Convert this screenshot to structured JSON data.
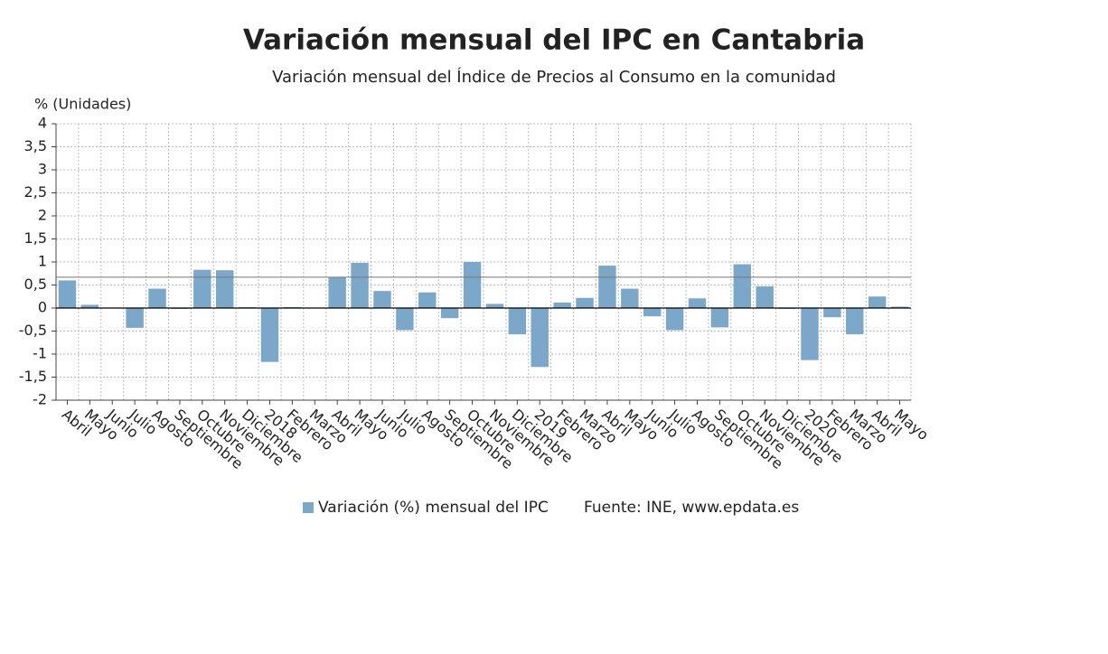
{
  "chart_data": {
    "type": "bar",
    "title": "Variación mensual del IPC en Cantabria",
    "subtitle": "Variación mensual del Índice de Precios al Consumo en la comunidad",
    "y_axis_label": "% (Unidades)",
    "source": "Fuente: INE, www.epdata.es",
    "categories": [
      "Abril",
      "Mayo",
      "Junio",
      "Julio",
      "Agosto",
      "Septiembre",
      "Octubre",
      "Noviembre",
      "Diciembre",
      "2018",
      "Febrero",
      "Marzo",
      "Abril",
      "Mayo",
      "Junio",
      "Julio",
      "Agosto",
      "Septiembre",
      "Octubre",
      "Noviembre",
      "Diciembre",
      "2019",
      "Febrero",
      "Marzo",
      "Abril",
      "Mayo",
      "Junio",
      "Julio",
      "Agosto",
      "Septiembre",
      "Octubre",
      "Noviembre",
      "Diciembre",
      "2020",
      "Febrero",
      "Marzo",
      "Abril",
      "Mayo"
    ],
    "series": [
      {
        "name": "Variación (%) mensual del IPC",
        "color": "#7ba7c9",
        "values": [
          0.6,
          0.07,
          0,
          -0.43,
          0.42,
          -0.02,
          0.83,
          0.82,
          0.02,
          -1.17,
          0.02,
          0,
          0.67,
          0.98,
          0.37,
          -0.48,
          0.34,
          -0.22,
          1.0,
          0.09,
          -0.57,
          -1.28,
          0.12,
          0.22,
          0.92,
          0.42,
          -0.18,
          -0.48,
          0.21,
          -0.42,
          0.95,
          0.47,
          -0.02,
          -1.13,
          -0.2,
          -0.57,
          0.25,
          0.03
        ]
      }
    ],
    "reference_line": 0.67,
    "ylim": [
      -2,
      4
    ],
    "yticks": [
      {
        "value": -2,
        "label": "-2"
      },
      {
        "value": -1.5,
        "label": "-1,5"
      },
      {
        "value": -1,
        "label": "-1"
      },
      {
        "value": -0.5,
        "label": "-0,5"
      },
      0,
      {
        "value": 0.5,
        "label": "0,5"
      },
      1,
      {
        "value": 1.5,
        "label": "1,5"
      },
      2,
      {
        "value": 2.5,
        "label": "2,5"
      },
      3,
      {
        "value": 3.5,
        "label": "3,5"
      },
      4
    ],
    "grid": true,
    "legend": "bottom"
  }
}
